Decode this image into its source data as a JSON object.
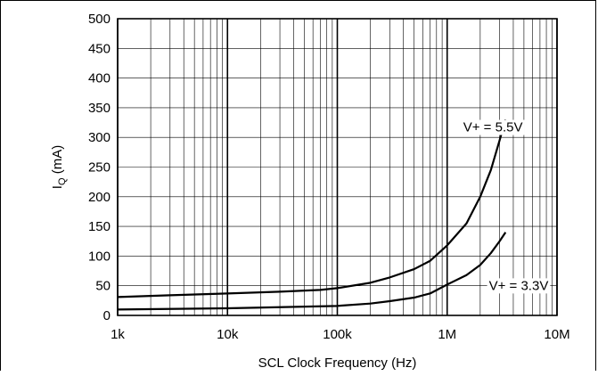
{
  "chart_data": {
    "type": "line",
    "x_scale": "log",
    "y_scale": "linear",
    "xlim": [
      1000,
      10000000
    ],
    "ylim": [
      0,
      500
    ],
    "xlabel": "SCL Clock Frequency (Hz)",
    "ylabel": {
      "main": "I",
      "sub": "Q",
      "unit": " (mA)"
    },
    "x_ticks": [
      {
        "value": 1000,
        "label": "1k"
      },
      {
        "value": 10000,
        "label": "10k"
      },
      {
        "value": 100000,
        "label": "100k"
      },
      {
        "value": 1000000,
        "label": "1M"
      },
      {
        "value": 10000000,
        "label": "10M"
      }
    ],
    "y_ticks": [
      {
        "value": 0,
        "label": "0"
      },
      {
        "value": 50,
        "label": "50"
      },
      {
        "value": 100,
        "label": "100"
      },
      {
        "value": 150,
        "label": "150"
      },
      {
        "value": 200,
        "label": "200"
      },
      {
        "value": 250,
        "label": "250"
      },
      {
        "value": 300,
        "label": "300"
      },
      {
        "value": 350,
        "label": "350"
      },
      {
        "value": 400,
        "label": "400"
      },
      {
        "value": 450,
        "label": "450"
      },
      {
        "value": 500,
        "label": "500"
      }
    ],
    "grid": true,
    "series": [
      {
        "name": "V+ = 5.5V",
        "color": "#000000",
        "points": [
          [
            1000,
            31
          ],
          [
            3000,
            34
          ],
          [
            10000,
            37
          ],
          [
            30000,
            40
          ],
          [
            70000,
            43
          ],
          [
            100000,
            46
          ],
          [
            200000,
            55
          ],
          [
            300000,
            64
          ],
          [
            500000,
            78
          ],
          [
            700000,
            92
          ],
          [
            1000000,
            118
          ],
          [
            1500000,
            155
          ],
          [
            2000000,
            200
          ],
          [
            2500000,
            245
          ],
          [
            3000000,
            295
          ],
          [
            3400000,
            330
          ]
        ]
      },
      {
        "name": "V+ = 3.3V",
        "color": "#000000",
        "points": [
          [
            1000,
            10
          ],
          [
            10000,
            12
          ],
          [
            100000,
            16
          ],
          [
            200000,
            20
          ],
          [
            300000,
            24
          ],
          [
            500000,
            30
          ],
          [
            700000,
            37
          ],
          [
            1000000,
            52
          ],
          [
            1500000,
            68
          ],
          [
            2000000,
            85
          ],
          [
            2500000,
            105
          ],
          [
            3000000,
            125
          ],
          [
            3400000,
            140
          ]
        ]
      }
    ],
    "annotations": [
      {
        "series": "V+ = 5.5V",
        "text": "V+ = 5.5V",
        "x": 1400000,
        "y": 310
      },
      {
        "series": "V+ = 3.3V",
        "text": "V+ = 3.3V",
        "x": 2400000,
        "y": 43
      }
    ]
  }
}
